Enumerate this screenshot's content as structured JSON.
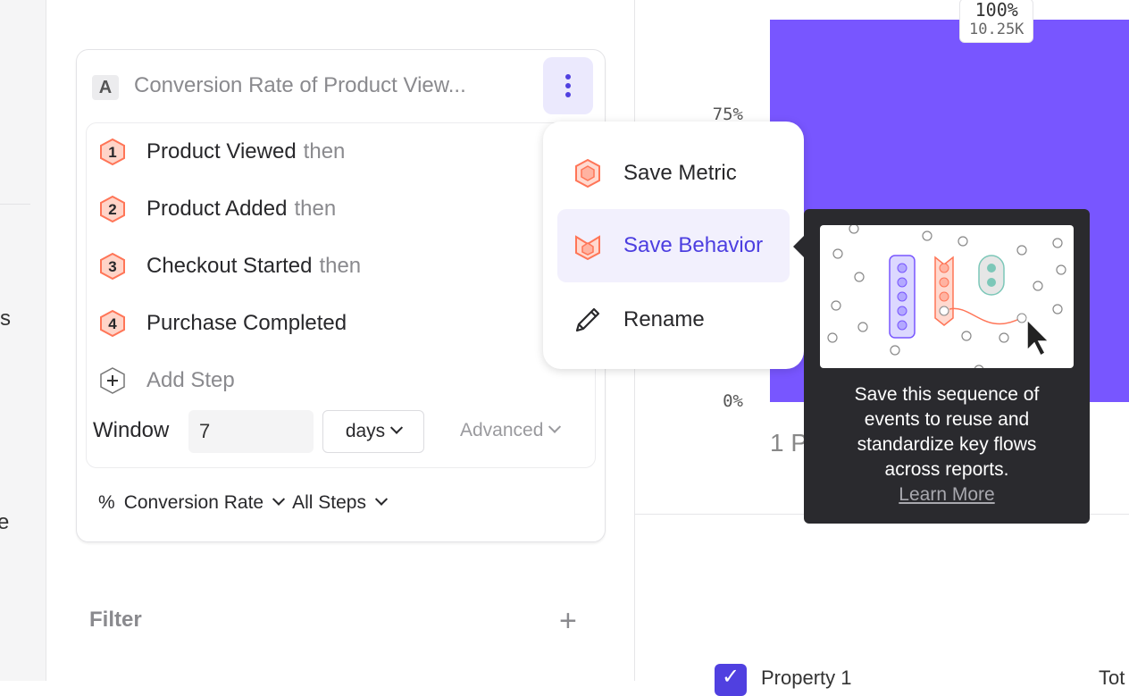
{
  "left_strip": {
    "fragments": [
      "s",
      "e"
    ]
  },
  "metric_card": {
    "badge": "A",
    "title": "Conversion Rate of Product View...",
    "steps": [
      {
        "number": "1",
        "name": "Product Viewed",
        "suffix": "then"
      },
      {
        "number": "2",
        "name": "Product Added",
        "suffix": "then"
      },
      {
        "number": "3",
        "name": "Checkout Started",
        "suffix": "then"
      },
      {
        "number": "4",
        "name": "Purchase Completed",
        "suffix": ""
      }
    ],
    "add_step": "Add Step",
    "window": {
      "label": "Window",
      "value": "7",
      "unit": "days",
      "advanced": "Advanced"
    },
    "measure": {
      "symbol": "%",
      "metric": "Conversion Rate",
      "steps": "All Steps"
    }
  },
  "filter": {
    "label": "Filter"
  },
  "menu": {
    "items": [
      {
        "label": "Save Metric",
        "icon": "metric-hex-icon"
      },
      {
        "label": "Save Behavior",
        "icon": "behavior-icon",
        "active": true
      },
      {
        "label": "Rename",
        "icon": "pencil-icon"
      }
    ]
  },
  "tooltip": {
    "text": "Save this sequence of events to reuse and standardize key flows across reports.",
    "link": "Learn More"
  },
  "colors": {
    "accent": "#5040e0",
    "bar": "#7856ff",
    "step": "#ff7557",
    "tooltip_bg": "#2a2a2e"
  },
  "chart_data": {
    "type": "bar",
    "yticks": [
      "0%",
      "75%"
    ],
    "ylim": [
      0,
      100
    ],
    "bars": [
      {
        "category": "1 P",
        "value": 100,
        "label": "100%",
        "count": "10.25K"
      }
    ]
  },
  "table": {
    "column": "Property 1",
    "total": "Tot"
  }
}
